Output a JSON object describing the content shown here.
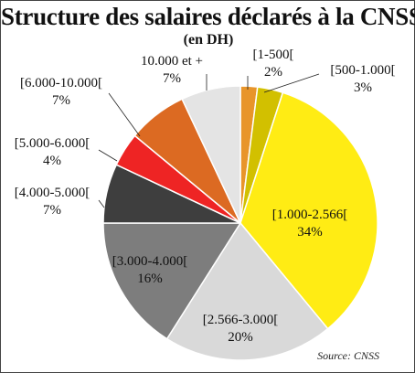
{
  "header": {
    "title": "Structure des salaires déclarés à la CNSS",
    "subtitle": "(en DH)"
  },
  "source": "Source: CNSS",
  "chart_data": {
    "type": "pie",
    "title": "Structure des salaires déclarés à la CNSS",
    "subtitle": "(en DH)",
    "unit": "%",
    "start": "top, clockwise",
    "slices": [
      {
        "label": "[1-500[",
        "value": 2,
        "value_text": "2%",
        "color": "#e8952a"
      },
      {
        "label": "[500-1.000[",
        "value": 3,
        "value_text": "3%",
        "color": "#d2c000"
      },
      {
        "label": "[1.000-2.566[",
        "value": 34,
        "value_text": "34%",
        "color": "#ffec14"
      },
      {
        "label": "[2.566-3.000[",
        "value": 20,
        "value_text": "20%",
        "color": "#d9d9d9"
      },
      {
        "label": "[3.000-4.000[",
        "value": 16,
        "value_text": "16%",
        "color": "#7d7d7d"
      },
      {
        "label": "[4.000-5.000[",
        "value": 7,
        "value_text": "7%",
        "color": "#3e3e3e"
      },
      {
        "label": "[5.000-6.000[",
        "value": 4,
        "value_text": "4%",
        "color": "#ee2424"
      },
      {
        "label": "[6.000-10.000[",
        "value": 7,
        "value_text": "7%",
        "color": "#dc6a22"
      },
      {
        "label": "10.000 et +",
        "value": 7,
        "value_text": "7%",
        "color": "#e4e4e4"
      }
    ]
  }
}
